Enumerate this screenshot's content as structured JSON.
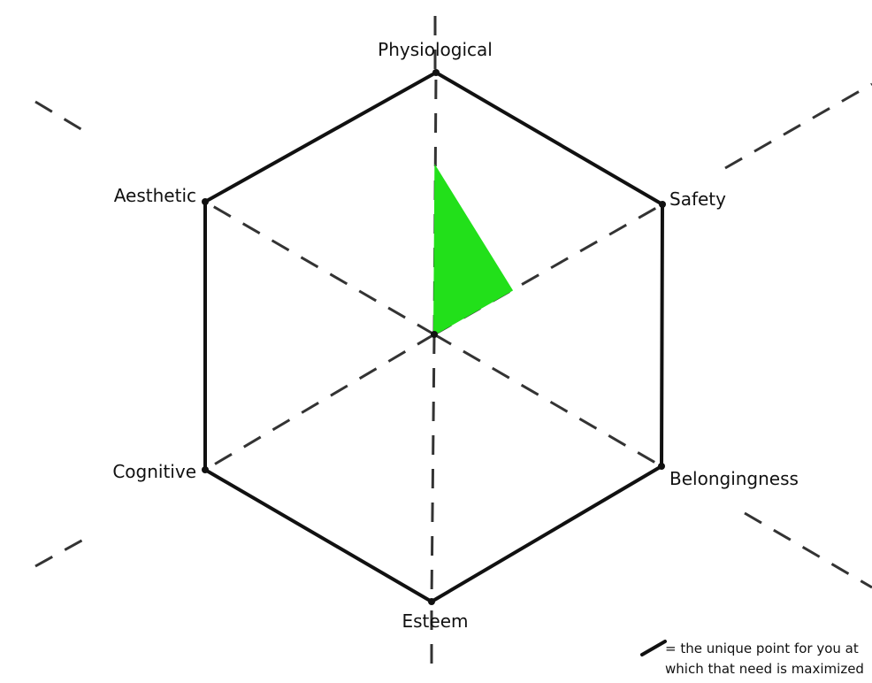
{
  "diagram": {
    "axes": [
      {
        "id": "physiological",
        "label": "Physiological"
      },
      {
        "id": "safety",
        "label": "Safety"
      },
      {
        "id": "belongingness",
        "label": "Belongingness"
      },
      {
        "id": "esteem",
        "label": "Esteem"
      },
      {
        "id": "cognitive",
        "label": "Cognitive"
      },
      {
        "id": "aesthetic",
        "label": "Aesthetic"
      }
    ],
    "highlight": {
      "color": "#22e01a",
      "values": {
        "physiological": 0.64,
        "safety": 0.34
      }
    },
    "legend": {
      "line1": "= the unique point for you at",
      "line2": "which that need is maximized"
    },
    "colors": {
      "outline": "#111111",
      "dash": "#333333"
    }
  }
}
